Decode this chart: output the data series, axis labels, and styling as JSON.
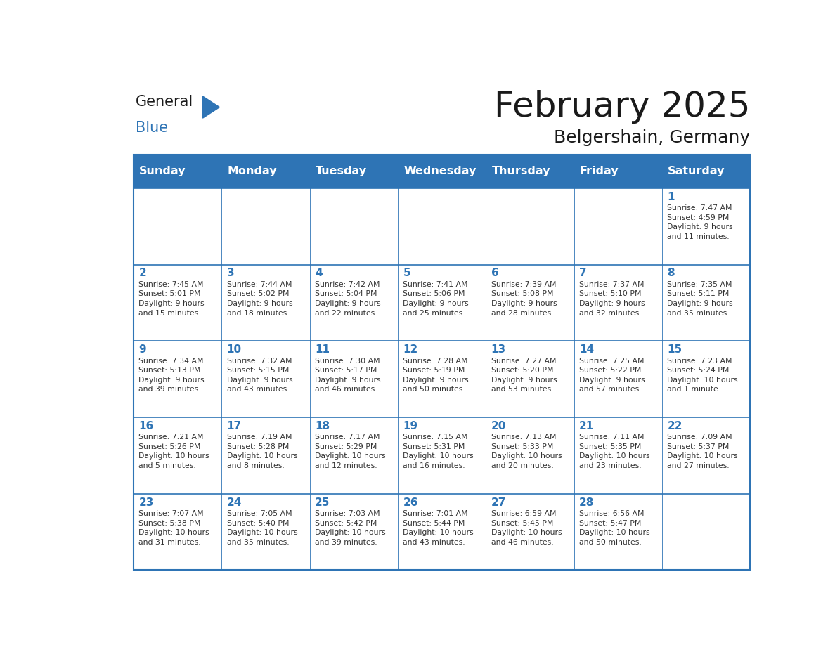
{
  "title": "February 2025",
  "subtitle": "Belgershain, Germany",
  "header_bg": "#2E74B5",
  "header_text_color": "#FFFFFF",
  "cell_bg": "#FFFFFF",
  "border_color": "#2E74B5",
  "day_headers": [
    "Sunday",
    "Monday",
    "Tuesday",
    "Wednesday",
    "Thursday",
    "Friday",
    "Saturday"
  ],
  "title_color": "#1A1A1A",
  "subtitle_color": "#1A1A1A",
  "day_num_color": "#2E74B5",
  "text_color": "#333333",
  "weeks": [
    [
      {
        "day": null,
        "info": null
      },
      {
        "day": null,
        "info": null
      },
      {
        "day": null,
        "info": null
      },
      {
        "day": null,
        "info": null
      },
      {
        "day": null,
        "info": null
      },
      {
        "day": null,
        "info": null
      },
      {
        "day": 1,
        "info": "Sunrise: 7:47 AM\nSunset: 4:59 PM\nDaylight: 9 hours\nand 11 minutes."
      }
    ],
    [
      {
        "day": 2,
        "info": "Sunrise: 7:45 AM\nSunset: 5:01 PM\nDaylight: 9 hours\nand 15 minutes."
      },
      {
        "day": 3,
        "info": "Sunrise: 7:44 AM\nSunset: 5:02 PM\nDaylight: 9 hours\nand 18 minutes."
      },
      {
        "day": 4,
        "info": "Sunrise: 7:42 AM\nSunset: 5:04 PM\nDaylight: 9 hours\nand 22 minutes."
      },
      {
        "day": 5,
        "info": "Sunrise: 7:41 AM\nSunset: 5:06 PM\nDaylight: 9 hours\nand 25 minutes."
      },
      {
        "day": 6,
        "info": "Sunrise: 7:39 AM\nSunset: 5:08 PM\nDaylight: 9 hours\nand 28 minutes."
      },
      {
        "day": 7,
        "info": "Sunrise: 7:37 AM\nSunset: 5:10 PM\nDaylight: 9 hours\nand 32 minutes."
      },
      {
        "day": 8,
        "info": "Sunrise: 7:35 AM\nSunset: 5:11 PM\nDaylight: 9 hours\nand 35 minutes."
      }
    ],
    [
      {
        "day": 9,
        "info": "Sunrise: 7:34 AM\nSunset: 5:13 PM\nDaylight: 9 hours\nand 39 minutes."
      },
      {
        "day": 10,
        "info": "Sunrise: 7:32 AM\nSunset: 5:15 PM\nDaylight: 9 hours\nand 43 minutes."
      },
      {
        "day": 11,
        "info": "Sunrise: 7:30 AM\nSunset: 5:17 PM\nDaylight: 9 hours\nand 46 minutes."
      },
      {
        "day": 12,
        "info": "Sunrise: 7:28 AM\nSunset: 5:19 PM\nDaylight: 9 hours\nand 50 minutes."
      },
      {
        "day": 13,
        "info": "Sunrise: 7:27 AM\nSunset: 5:20 PM\nDaylight: 9 hours\nand 53 minutes."
      },
      {
        "day": 14,
        "info": "Sunrise: 7:25 AM\nSunset: 5:22 PM\nDaylight: 9 hours\nand 57 minutes."
      },
      {
        "day": 15,
        "info": "Sunrise: 7:23 AM\nSunset: 5:24 PM\nDaylight: 10 hours\nand 1 minute."
      }
    ],
    [
      {
        "day": 16,
        "info": "Sunrise: 7:21 AM\nSunset: 5:26 PM\nDaylight: 10 hours\nand 5 minutes."
      },
      {
        "day": 17,
        "info": "Sunrise: 7:19 AM\nSunset: 5:28 PM\nDaylight: 10 hours\nand 8 minutes."
      },
      {
        "day": 18,
        "info": "Sunrise: 7:17 AM\nSunset: 5:29 PM\nDaylight: 10 hours\nand 12 minutes."
      },
      {
        "day": 19,
        "info": "Sunrise: 7:15 AM\nSunset: 5:31 PM\nDaylight: 10 hours\nand 16 minutes."
      },
      {
        "day": 20,
        "info": "Sunrise: 7:13 AM\nSunset: 5:33 PM\nDaylight: 10 hours\nand 20 minutes."
      },
      {
        "day": 21,
        "info": "Sunrise: 7:11 AM\nSunset: 5:35 PM\nDaylight: 10 hours\nand 23 minutes."
      },
      {
        "day": 22,
        "info": "Sunrise: 7:09 AM\nSunset: 5:37 PM\nDaylight: 10 hours\nand 27 minutes."
      }
    ],
    [
      {
        "day": 23,
        "info": "Sunrise: 7:07 AM\nSunset: 5:38 PM\nDaylight: 10 hours\nand 31 minutes."
      },
      {
        "day": 24,
        "info": "Sunrise: 7:05 AM\nSunset: 5:40 PM\nDaylight: 10 hours\nand 35 minutes."
      },
      {
        "day": 25,
        "info": "Sunrise: 7:03 AM\nSunset: 5:42 PM\nDaylight: 10 hours\nand 39 minutes."
      },
      {
        "day": 26,
        "info": "Sunrise: 7:01 AM\nSunset: 5:44 PM\nDaylight: 10 hours\nand 43 minutes."
      },
      {
        "day": 27,
        "info": "Sunrise: 6:59 AM\nSunset: 5:45 PM\nDaylight: 10 hours\nand 46 minutes."
      },
      {
        "day": 28,
        "info": "Sunrise: 6:56 AM\nSunset: 5:47 PM\nDaylight: 10 hours\nand 50 minutes."
      },
      {
        "day": null,
        "info": null
      }
    ]
  ],
  "logo_general_color": "#1A1A1A",
  "logo_blue_color": "#2E74B5"
}
